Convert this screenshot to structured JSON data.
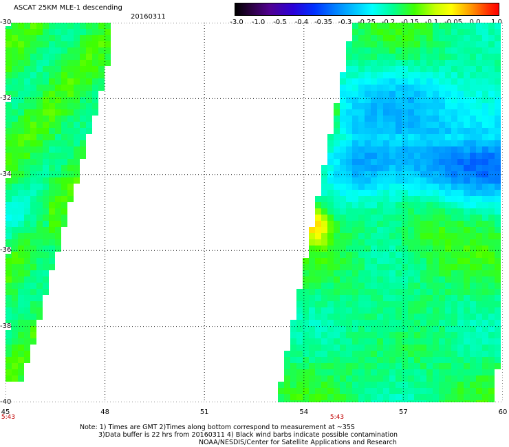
{
  "header": {
    "title": "ASCAT 25KM MLE-1 descending",
    "date": "20160311"
  },
  "colorbar": {
    "labels": [
      "-3.0",
      "-1.0",
      "-0.5",
      "-0.4",
      "-0.35",
      "-0.3",
      "-0.25",
      "-0.2",
      "-0.15",
      "-0.1",
      "-0.05",
      "0.0",
      "1.0"
    ],
    "colors": [
      "#000000",
      "#500090",
      "#0030ff",
      "#0080ff",
      "#00c8ff",
      "#00ffff",
      "#00ff90",
      "#40ff00",
      "#c8ff00",
      "#ffff00",
      "#ff9000",
      "#ff0000"
    ]
  },
  "map": {
    "lon_labels": [
      "45",
      "48",
      "51",
      "54",
      "57",
      "60"
    ],
    "lat_labels": [
      "-30",
      "-32",
      "-34",
      "-36",
      "-38",
      "-40"
    ],
    "lon_range": [
      45,
      60
    ],
    "lat_range": [
      -30,
      -40
    ],
    "grid": true,
    "time_labels": [
      {
        "text": "5:43",
        "lon": 45
      },
      {
        "text": "5:43",
        "lon": 55
      }
    ]
  },
  "notes": {
    "line1": "Note: 1) Times are GMT 2)Times along bottom correspond to measurement at ~35S",
    "line2": "3)Data buffer is 22 hrs from 20160311 4) Black wind barbs indicate possible contamination",
    "line3": "NOAA/NESDIS/Center for Satellite Applications and Research"
  }
}
